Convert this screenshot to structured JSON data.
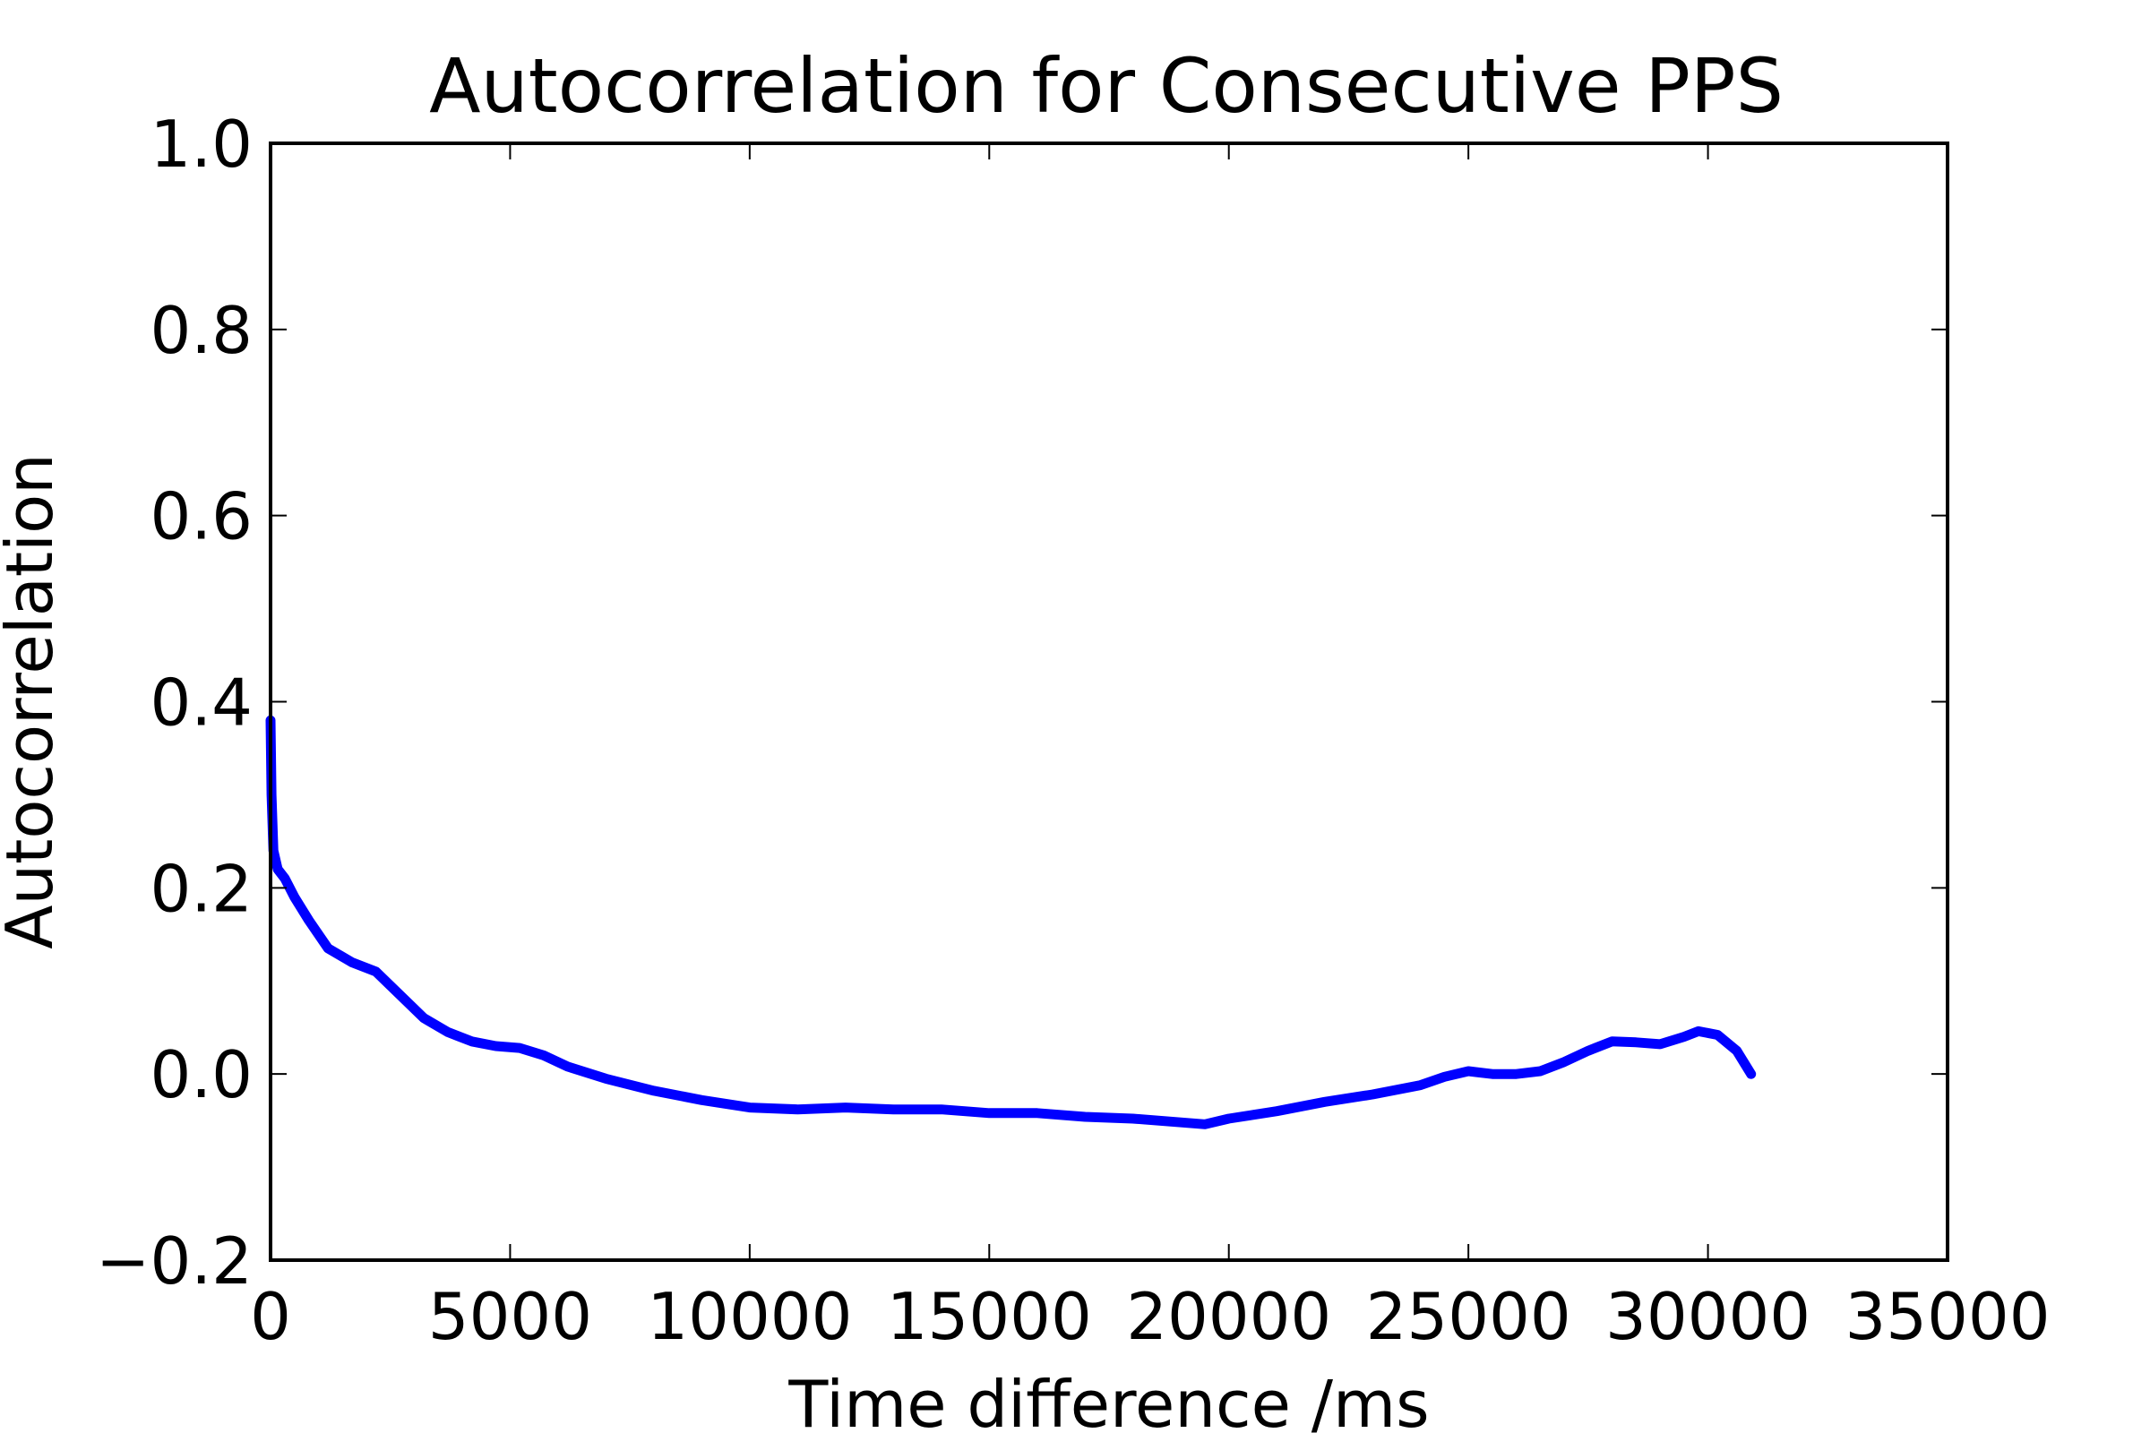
{
  "chart_data": {
    "type": "line",
    "title": "Autocorrelation for Consecutive PPS",
    "xlabel": "Time difference /ms",
    "ylabel": "Autocorrelation",
    "xlim": [
      0,
      35000
    ],
    "ylim": [
      -0.2,
      1.0
    ],
    "x_ticks": [
      0,
      5000,
      10000,
      15000,
      20000,
      25000,
      30000,
      35000
    ],
    "x_tick_labels": [
      "0",
      "5000",
      "10000",
      "15000",
      "20000",
      "25000",
      "30000",
      "35000"
    ],
    "y_ticks": [
      -0.2,
      0.0,
      0.2,
      0.4,
      0.6,
      0.8,
      1.0
    ],
    "y_tick_labels": [
      "−0.2",
      "0.0",
      "0.2",
      "0.4",
      "0.6",
      "0.8",
      "1.0"
    ],
    "grid": false,
    "legend": "none",
    "series": [
      {
        "color": "#0000ff",
        "x": [
          0,
          20,
          60,
          150,
          300,
          500,
          800,
          1200,
          1700,
          2200,
          2700,
          3200,
          3700,
          4200,
          4700,
          5200,
          5700,
          6200,
          7000,
          8000,
          9000,
          10000,
          11000,
          12000,
          13000,
          14000,
          15000,
          16000,
          17000,
          18000,
          19000,
          19500,
          20000,
          21000,
          22000,
          23000,
          24000,
          24500,
          25000,
          25500,
          26000,
          26500,
          27000,
          27500,
          28000,
          28500,
          29000,
          29500,
          29800,
          30200,
          30600,
          30900
        ],
        "y": [
          0.38,
          0.3,
          0.24,
          0.22,
          0.21,
          0.19,
          0.165,
          0.135,
          0.12,
          0.11,
          0.085,
          0.06,
          0.045,
          0.035,
          0.03,
          0.028,
          0.02,
          0.008,
          -0.005,
          -0.018,
          -0.028,
          -0.036,
          -0.038,
          -0.036,
          -0.038,
          -0.038,
          -0.042,
          -0.042,
          -0.046,
          -0.048,
          -0.052,
          -0.054,
          -0.048,
          -0.04,
          -0.03,
          -0.022,
          -0.012,
          -0.003,
          0.003,
          0.0,
          0.0,
          0.003,
          0.013,
          0.025,
          0.035,
          0.034,
          0.032,
          0.04,
          0.046,
          0.042,
          0.025,
          0.0
        ]
      }
    ]
  }
}
